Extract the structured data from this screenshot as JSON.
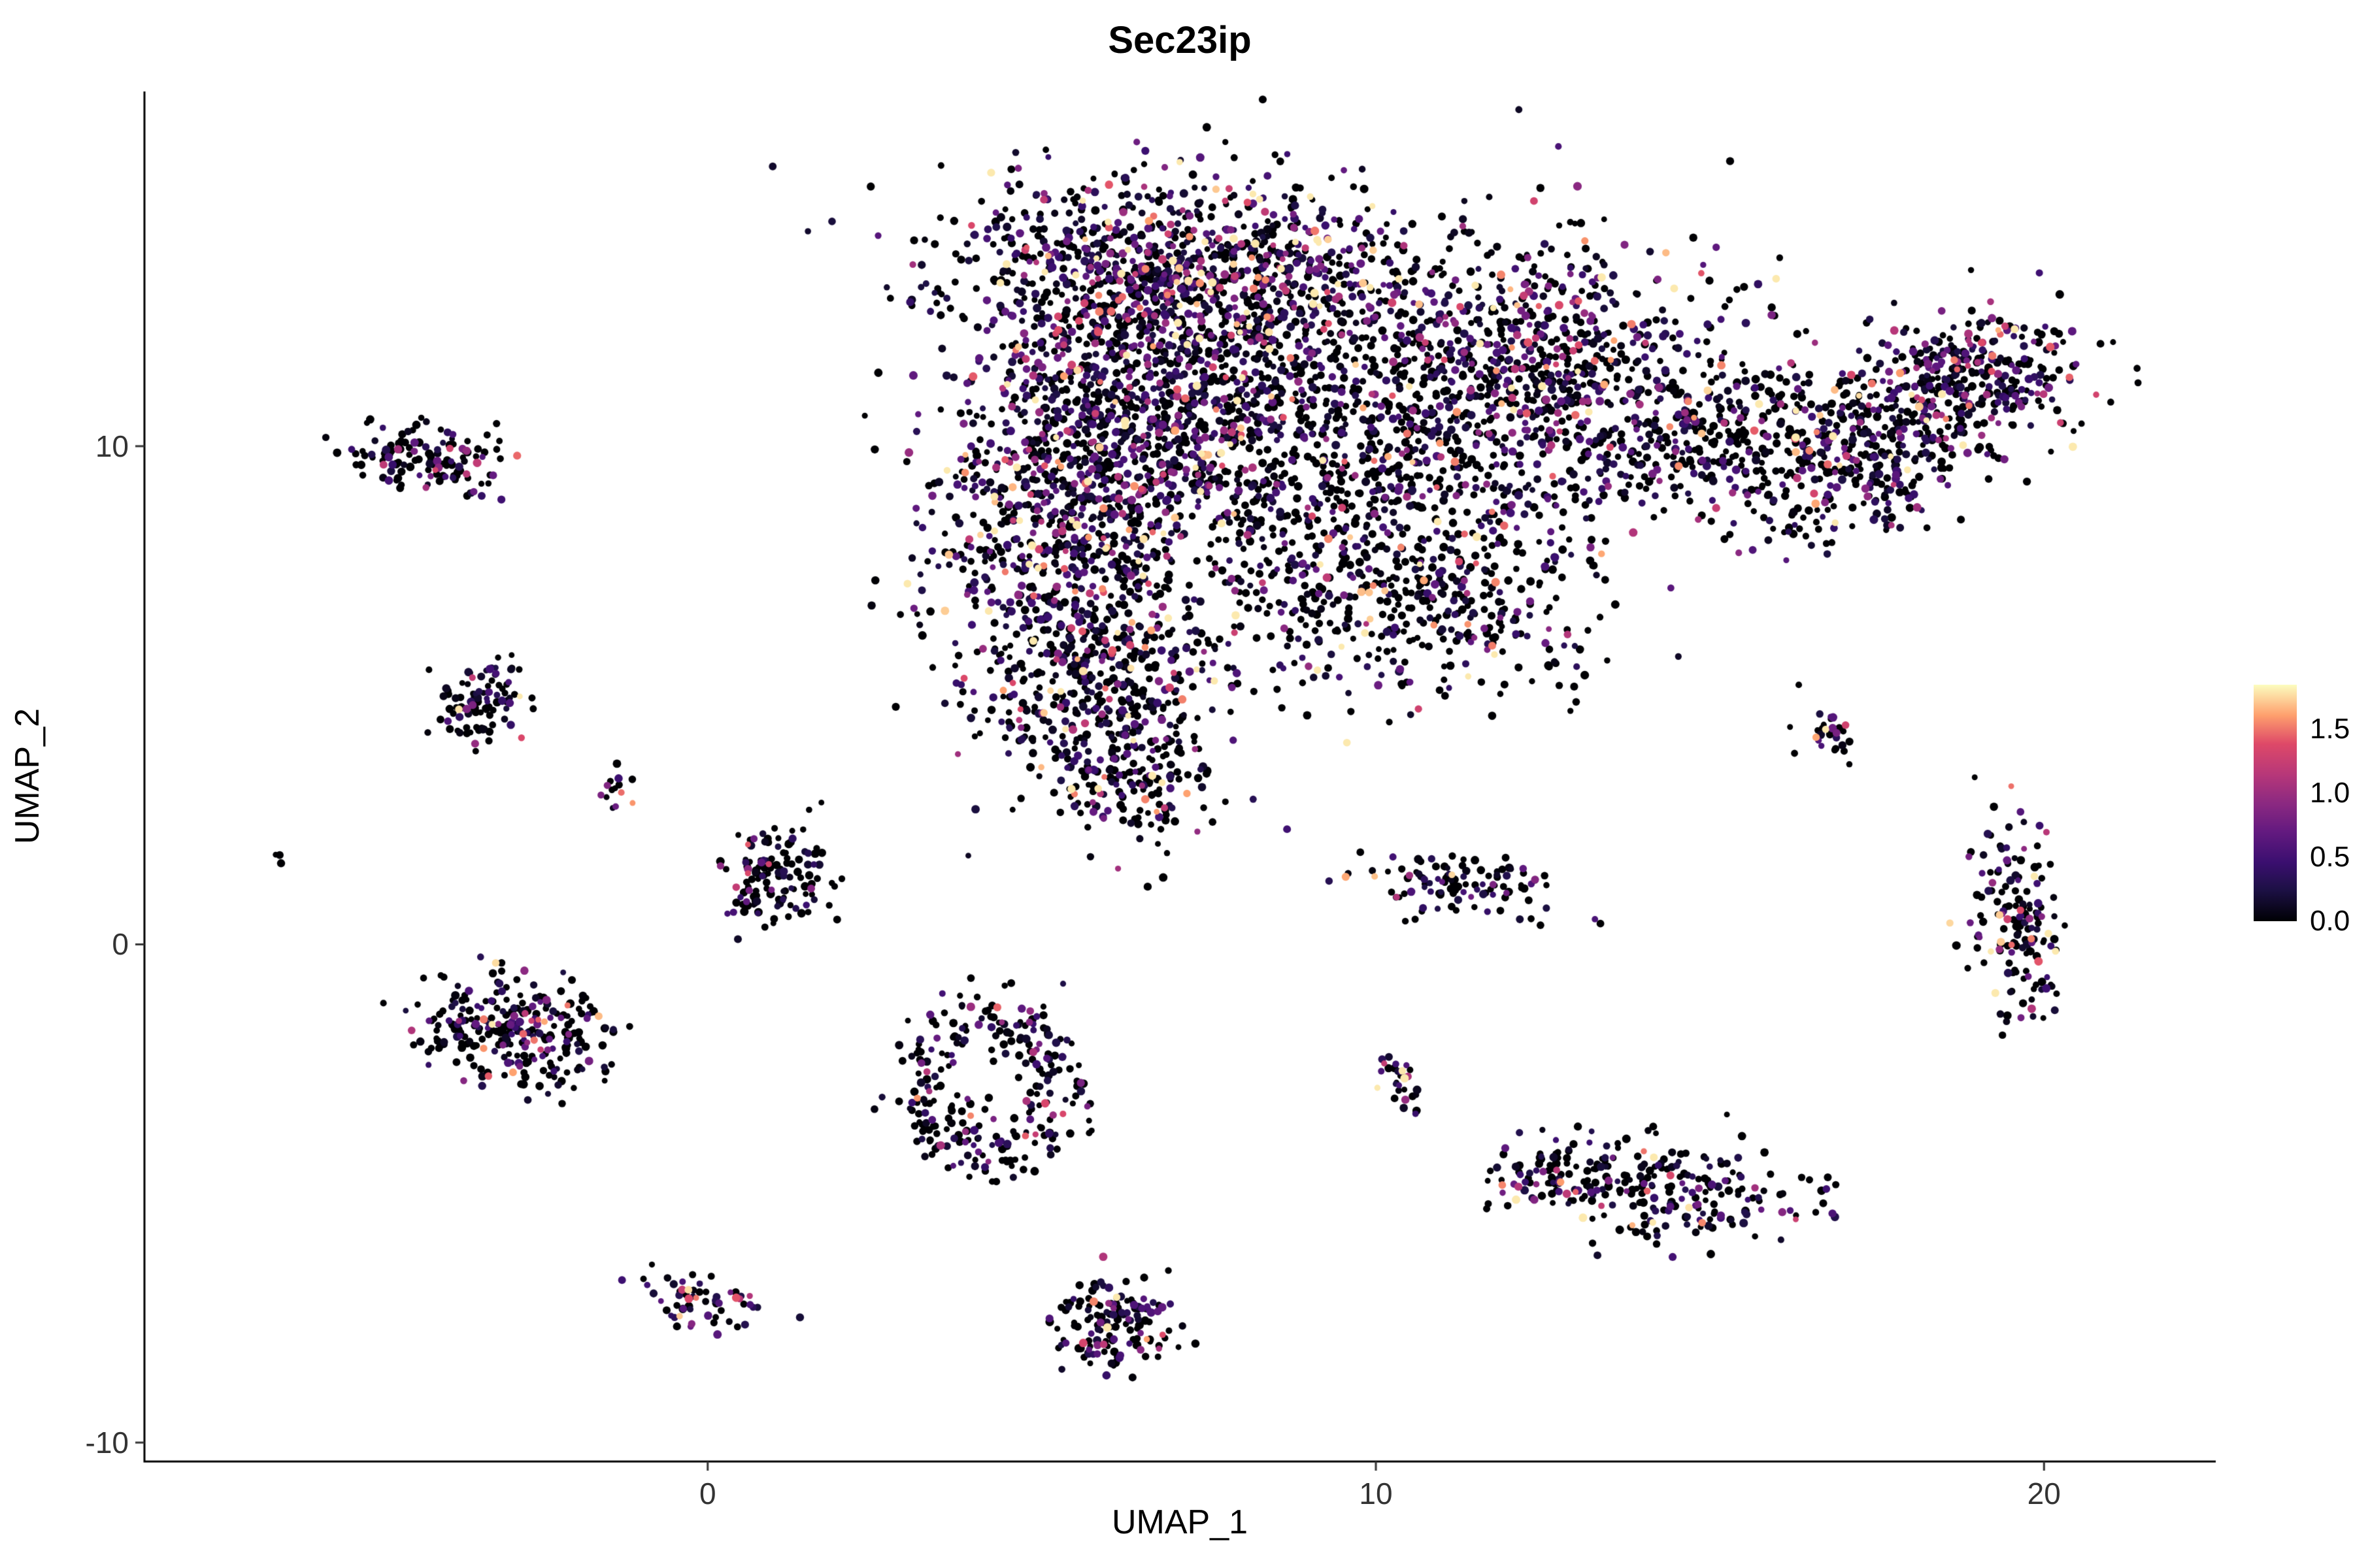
{
  "chart_data": {
    "type": "scatter",
    "title": "Sec23ip",
    "xlabel": "UMAP_1",
    "ylabel": "UMAP_2",
    "xlim": [
      -8.43,
      22.57
    ],
    "ylim": [
      -10.38,
      17.12
    ],
    "grid": false,
    "background": "#FFFFFF",
    "axis_color": "#000000",
    "tick_text_color": "#333333",
    "x_ticks": [
      {
        "value": 0,
        "label": "0"
      },
      {
        "value": 10,
        "label": "10"
      },
      {
        "value": 20,
        "label": "20"
      }
    ],
    "y_ticks": [
      {
        "value": 10,
        "label": "10"
      },
      {
        "value": 0,
        "label": "0"
      },
      {
        "value": -10,
        "label": "-10"
      }
    ],
    "legend": {
      "position": "right",
      "range": [
        0,
        1.85
      ],
      "ticks": [
        {
          "value": 1.5,
          "label": "1.5"
        },
        {
          "value": 1.0,
          "label": "1.0"
        },
        {
          "value": 0.5,
          "label": "0.5"
        },
        {
          "value": 0.0,
          "label": "0.0"
        }
      ]
    },
    "colormap": {
      "name": "magma",
      "stops": [
        {
          "t": 0.0,
          "color": "#000004"
        },
        {
          "t": 0.13,
          "color": "#1C1044"
        },
        {
          "t": 0.25,
          "color": "#3B0F70"
        },
        {
          "t": 0.38,
          "color": "#641A80"
        },
        {
          "t": 0.5,
          "color": "#8C2981"
        },
        {
          "t": 0.62,
          "color": "#B73779"
        },
        {
          "t": 0.75,
          "color": "#DE4968"
        },
        {
          "t": 0.87,
          "color": "#FE9F6D"
        },
        {
          "t": 1.0,
          "color": "#FCFDBF"
        }
      ]
    },
    "point_radius_px": 5.5,
    "seed": 42,
    "clusters": [
      {
        "name": "main-top-arc",
        "shape": "gauss",
        "n": 1100,
        "cx": 7.4,
        "cy": 13.4,
        "sx": 1.9,
        "sy": 1.0,
        "rot": -8,
        "p_zero": 0.38,
        "expr_mean": 0.55
      },
      {
        "name": "main-left-lobe",
        "shape": "gauss",
        "n": 950,
        "cx": 5.4,
        "cy": 8.6,
        "sx": 1.05,
        "sy": 2.0,
        "rot": 0,
        "p_zero": 0.42,
        "expr_mean": 0.5
      },
      {
        "name": "main-center",
        "shape": "gauss",
        "n": 650,
        "cx": 7.0,
        "cy": 10.8,
        "sx": 1.2,
        "sy": 1.4,
        "rot": 0,
        "p_zero": 0.45,
        "expr_mean": 0.5
      },
      {
        "name": "main-mid-sparse",
        "shape": "gauss",
        "n": 600,
        "cx": 9.6,
        "cy": 9.6,
        "sx": 1.6,
        "sy": 1.5,
        "rot": 0,
        "p_zero": 0.62,
        "expr_mean": 0.45
      },
      {
        "name": "main-right",
        "shape": "gauss",
        "n": 850,
        "cx": 12.4,
        "cy": 11.4,
        "sx": 1.5,
        "sy": 1.4,
        "rot": 10,
        "p_zero": 0.48,
        "expr_mean": 0.5
      },
      {
        "name": "main-lower-mid",
        "shape": "gauss",
        "n": 450,
        "cx": 10.4,
        "cy": 7.0,
        "sx": 1.5,
        "sy": 1.1,
        "rot": 0,
        "p_zero": 0.6,
        "expr_mean": 0.45
      },
      {
        "name": "main-tail",
        "shape": "gauss",
        "n": 330,
        "cx": 5.9,
        "cy": 5.2,
        "sx": 0.85,
        "sy": 1.0,
        "rot": 0,
        "p_zero": 0.5,
        "expr_mean": 0.5
      },
      {
        "name": "main-tail-tip",
        "shape": "gauss",
        "n": 170,
        "cx": 6.3,
        "cy": 3.4,
        "sx": 0.6,
        "sy": 0.7,
        "rot": 0,
        "p_zero": 0.5,
        "expr_mean": 0.5
      },
      {
        "name": "neck",
        "shape": "gauss",
        "n": 170,
        "cx": 14.9,
        "cy": 10.2,
        "sx": 0.7,
        "sy": 0.75,
        "rot": 0,
        "p_zero": 0.5,
        "expr_mean": 0.5
      },
      {
        "name": "right-lobe-a",
        "shape": "gauss",
        "n": 420,
        "cx": 17.0,
        "cy": 9.9,
        "sx": 1.05,
        "sy": 0.85,
        "rot": 18,
        "p_zero": 0.5,
        "expr_mean": 0.5
      },
      {
        "name": "right-lobe-b",
        "shape": "gauss",
        "n": 360,
        "cx": 18.8,
        "cy": 11.3,
        "sx": 0.85,
        "sy": 0.7,
        "rot": 20,
        "p_zero": 0.45,
        "expr_mean": 0.55
      },
      {
        "name": "sat-top-left",
        "shape": "gauss",
        "n": 130,
        "cx": -4.25,
        "cy": 9.7,
        "sx": 0.6,
        "sy": 0.33,
        "rot": -5,
        "p_zero": 0.5,
        "expr_mean": 0.45
      },
      {
        "name": "sat-left-upper",
        "shape": "gauss",
        "n": 95,
        "cx": -3.4,
        "cy": 4.9,
        "sx": 0.33,
        "sy": 0.5,
        "rot": -20,
        "p_zero": 0.5,
        "expr_mean": 0.5
      },
      {
        "name": "sat-tiny-mid",
        "shape": "gauss",
        "n": 14,
        "cx": -1.35,
        "cy": 3.2,
        "sx": 0.14,
        "sy": 0.2,
        "rot": 0,
        "p_zero": 0.45,
        "expr_mean": 0.5
      },
      {
        "name": "sat-lone-left",
        "shape": "gauss",
        "n": 3,
        "cx": -6.35,
        "cy": 1.75,
        "sx": 0.06,
        "sy": 0.06,
        "rot": 0,
        "p_zero": 0.4,
        "expr_mean": 0.5
      },
      {
        "name": "sat-center-small",
        "shape": "gauss",
        "n": 130,
        "cx": 1.0,
        "cy": 1.4,
        "sx": 0.42,
        "sy": 0.5,
        "rot": 0,
        "p_zero": 0.55,
        "expr_mean": 0.45
      },
      {
        "name": "sat-left-dense",
        "shape": "gauss",
        "n": 280,
        "cx": -2.85,
        "cy": -1.8,
        "sx": 0.75,
        "sy": 0.55,
        "rot": -12,
        "p_zero": 0.55,
        "expr_mean": 0.45
      },
      {
        "name": "sat-ring",
        "shape": "ring",
        "n": 270,
        "cx": 4.2,
        "cy": -2.8,
        "ring_r": 1.1,
        "ring_w": 0.28,
        "yscale": 1.25,
        "p_zero": 0.55,
        "expr_mean": 0.45
      },
      {
        "name": "sat-mid-right",
        "shape": "gauss",
        "n": 110,
        "cx": 11.2,
        "cy": 1.15,
        "sx": 0.8,
        "sy": 0.3,
        "rot": -12,
        "p_zero": 0.5,
        "expr_mean": 0.5
      },
      {
        "name": "sat-streak",
        "shape": "gauss",
        "n": 32,
        "cx": 10.35,
        "cy": -2.7,
        "sx": 0.14,
        "sy": 0.4,
        "rot": 15,
        "p_zero": 0.45,
        "expr_mean": 0.55
      },
      {
        "name": "sat-lower-right",
        "shape": "gauss",
        "n": 255,
        "cx": 14.2,
        "cy": -4.9,
        "sx": 1.15,
        "sy": 0.5,
        "rot": -8,
        "p_zero": 0.55,
        "expr_mean": 0.5
      },
      {
        "name": "sat-lower-right-b",
        "shape": "gauss",
        "n": 40,
        "cx": 12.6,
        "cy": -4.6,
        "sx": 0.35,
        "sy": 0.3,
        "rot": 0,
        "p_zero": 0.55,
        "expr_mean": 0.5
      },
      {
        "name": "sat-tiny-diag",
        "shape": "gauss",
        "n": 28,
        "cx": 16.8,
        "cy": 4.2,
        "sx": 0.22,
        "sy": 0.3,
        "rot": 30,
        "p_zero": 0.45,
        "expr_mean": 0.6
      },
      {
        "name": "sat-far-right",
        "shape": "gauss",
        "n": 160,
        "cx": 19.6,
        "cy": 0.5,
        "sx": 0.33,
        "sy": 1.05,
        "rot": 5,
        "p_zero": 0.5,
        "expr_mean": 0.55
      },
      {
        "name": "sat-bottom-left",
        "shape": "gauss",
        "n": 60,
        "cx": -0.1,
        "cy": -7.1,
        "sx": 0.45,
        "sy": 0.24,
        "rot": -10,
        "p_zero": 0.5,
        "expr_mean": 0.5
      },
      {
        "name": "sat-bottom-center",
        "shape": "gauss",
        "n": 150,
        "cx": 6.1,
        "cy": -7.6,
        "sx": 0.45,
        "sy": 0.45,
        "rot": 0,
        "p_zero": 0.55,
        "expr_mean": 0.5
      }
    ]
  }
}
